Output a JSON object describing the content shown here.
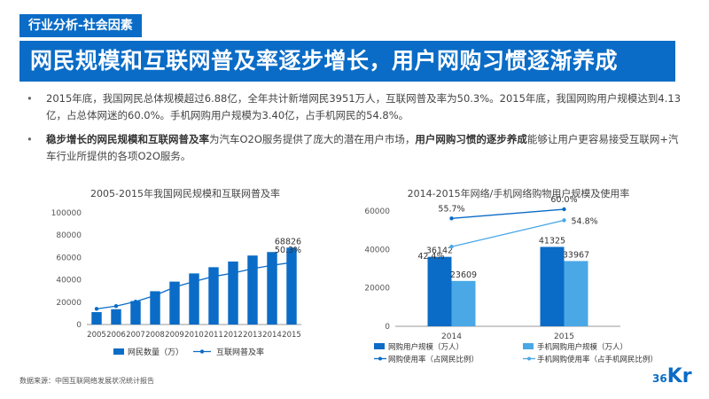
{
  "header": {
    "tag": "行业分析-社会因素",
    "title": "网民规模和互联网普及率逐步增长，用户网购习惯逐渐养成"
  },
  "bullets": [
    {
      "segments": [
        {
          "text": "2015年底，我国网民总体规模超过6.88亿，全年共计新增网民3951万人，互联网普及率为50.3%。2015年底，我国网购用户规模达到4.13亿，占总体网迷的60.0%。手机网购用户规模为3.40亿，占手机网民的54.8%。",
          "bold": false
        }
      ]
    },
    {
      "segments": [
        {
          "text": "稳步增长的网民规模和互联网普及率",
          "bold": true
        },
        {
          "text": "为汽车O2O服务提供了庞大的潜在用户市场，",
          "bold": false
        },
        {
          "text": "用户网购习惯的逐步养成",
          "bold": true
        },
        {
          "text": "能够让用户更容易接受互联网+汽车行业所提供的各项O2O服务。",
          "bold": false
        }
      ]
    }
  ],
  "chart_data": [
    {
      "type": "bar",
      "title": "2005-2015年我国网民规模和互联网普及率",
      "categories": [
        "2005",
        "2006",
        "2007",
        "2008",
        "2009",
        "2010",
        "2011",
        "2012",
        "2013",
        "2014",
        "2015"
      ],
      "ylim": [
        0,
        100000
      ],
      "yticks": [
        "0",
        "20000",
        "40000",
        "60000",
        "80000",
        "100000"
      ],
      "series": [
        {
          "name": "网民数量（万）",
          "type": "bar",
          "color": "#0a6cc6",
          "values": [
            11100,
            13700,
            21000,
            29800,
            38400,
            45730,
            51310,
            56400,
            61758,
            64875,
            68826
          ]
        },
        {
          "name": "互联网普及率",
          "type": "line",
          "color": "#0a6cc6",
          "values": [
            14000,
            16500,
            20500,
            26000,
            33500,
            38500,
            43000,
            46000,
            50000,
            53000,
            55500
          ]
        }
      ],
      "annotations": [
        {
          "text": "50.3%",
          "category": "2015",
          "series": "互联网普及率"
        },
        {
          "text": "68826",
          "category": "2015",
          "series": "网民数量（万）"
        }
      ]
    },
    {
      "type": "bar",
      "title": "2014-2015年网络/手机网络购物用户规模及使用率",
      "categories": [
        "2014",
        "2015"
      ],
      "ylim": [
        0,
        60000
      ],
      "yticks": [
        "0",
        "20000",
        "40000",
        "60000"
      ],
      "series": [
        {
          "name": "网购用户规模（万人）",
          "type": "bar",
          "color": "#0a6cc6",
          "values": [
            36142,
            41325
          ],
          "labels": [
            "36142",
            "41325"
          ]
        },
        {
          "name": "手机网购用户规模（万人）",
          "type": "bar",
          "color": "#4aa8e6",
          "values": [
            23609,
            33967
          ],
          "labels": [
            "23609",
            "33967"
          ]
        },
        {
          "name": "网购使用率（占网民比例）",
          "type": "line",
          "color": "#0a6cc6",
          "values": [
            55.7,
            60.0
          ],
          "labels": [
            "55.7%",
            "60.0%"
          ]
        },
        {
          "name": "手机网购使用率（占手机网民比例）",
          "type": "line",
          "color": "#4aa8e6",
          "values": [
            42.4,
            54.8
          ],
          "labels": [
            "42.4%",
            "54.8%"
          ]
        }
      ]
    }
  ],
  "footer": {
    "source": "数据来源：中国互联网络发展状况统计报告",
    "logo_num": "36",
    "logo_kr": "Kr"
  }
}
